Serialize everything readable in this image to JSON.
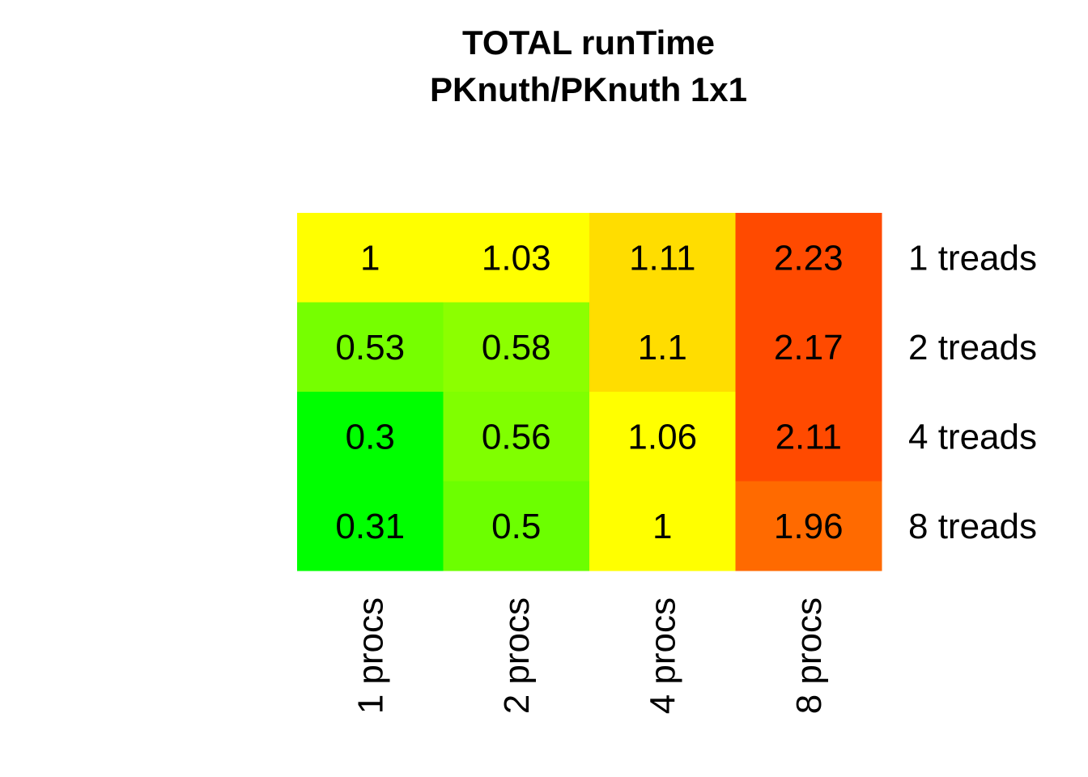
{
  "chart_data": {
    "type": "heatmap",
    "title": "TOTAL  runTime",
    "subtitle": "PKnuth/PKnuth 1x1",
    "x_categories": [
      "1 procs",
      "2 procs",
      "4 procs",
      "8 procs"
    ],
    "y_categories": [
      "1 treads",
      "2 treads",
      "4 treads",
      "8 treads"
    ],
    "values": [
      [
        1,
        1.03,
        1.11,
        2.23
      ],
      [
        0.53,
        0.58,
        1.1,
        2.17
      ],
      [
        0.3,
        0.56,
        1.06,
        2.11
      ],
      [
        0.31,
        0.5,
        1,
        1.96
      ]
    ],
    "colors": [
      [
        "#ffff00",
        "#ffff00",
        "#ffdd00",
        "#ff4a00"
      ],
      [
        "#76ff00",
        "#8cff00",
        "#ffdd00",
        "#ff4a00"
      ],
      [
        "#00ff00",
        "#80ff00",
        "#ffff00",
        "#ff4a00"
      ],
      [
        "#00ff00",
        "#6cff00",
        "#ffff00",
        "#ff6a00"
      ]
    ]
  }
}
